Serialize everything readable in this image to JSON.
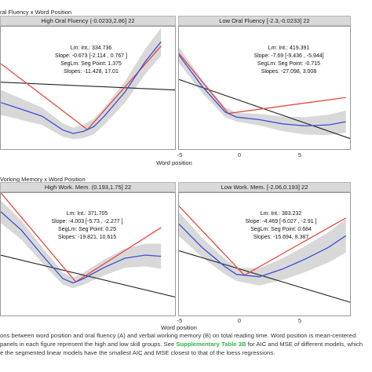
{
  "section_titles": [
    "ral Fluency x Word Position",
    "Vorking Memory x Word Position"
  ],
  "x_axis_label": "Word position",
  "x_ticks": [
    "-5",
    "0",
    "5"
  ],
  "panels": [
    {
      "strip": "High Oral Fluency (-0.0233,2.86] 22",
      "stats": [
        "Lm: Int.: 334.736",
        "Slope: -0.673 [-2.114 , 0.767 ]",
        "SegLm: Seg Point: 1.375",
        "Slopes: -11.428, 17.01"
      ]
    },
    {
      "strip": "Low Oral Fluency [-2.3,-0.0233] 22",
      "stats": [
        "Lm: Int.: 419.391",
        "Slope: -7.69 [-9.436 , -5.944]",
        "SegLm: Seg Point: -0.715",
        "Slopes: -27.098, 3.008"
      ]
    },
    {
      "strip": "High Work. Mem. (0.193,1.75] 22",
      "stats": [
        "Lm: Int.: 371.705",
        "Slope: -4.003 [-5.73 , -2.277 ]",
        "SegLm: Seg Point: 0.25",
        "Slopes: -19.821, 10.615"
      ]
    },
    {
      "strip": "Low Work. Mem. [-2.06,0.193] 22",
      "stats": [
        "Lm: Int.: 383.232",
        "Slope: -4.469 [-6.027 , -2.91 ]",
        "SegLm: Seg Point: 0.684",
        "Slopes: -15.694, 8.387"
      ]
    }
  ],
  "caption": {
    "line1": "ons between word position and oral fluency (A) and verbal working memory (B) on total reading time. Word position is mean-centered.",
    "line2_pre": "panels in each figure represent the high and low skill groups. See ",
    "line2_link": "Supplementary Table 3B",
    "line2_post": " for AIC and MSE of different models, which",
    "line3": "e the segmented linear models have the smallest AIC and MSE closest to that of the loess regressions."
  },
  "colors": {
    "linear": "#222222",
    "segmented": "#e8473f",
    "loess": "#3b4fd8",
    "band": "#c8c8c8"
  },
  "chart_data": [
    {
      "type": "line",
      "title": "High Oral Fluency (-0.0233,2.86] 22",
      "xlabel": "",
      "xlim": [
        -7,
        10
      ],
      "series": [
        {
          "kind": "linear",
          "intercept": 334.736,
          "slope": -0.673
        },
        {
          "kind": "segmented",
          "breakpoint": 1.375,
          "slopes": [
            -11.428,
            17.01
          ]
        },
        {
          "kind": "loess",
          "x": [
            -7,
            -5,
            -3,
            -1,
            0,
            1,
            2,
            3,
            5,
            7,
            8.5
          ],
          "y": [
            310,
            300,
            290,
            270,
            265,
            268,
            275,
            290,
            325,
            370,
            398
          ]
        }
      ]
    },
    {
      "type": "line",
      "title": "Low Oral Fluency [-2.3,-0.0233] 22",
      "xlabel": "Word position",
      "xlim": [
        -5,
        10
      ],
      "series": [
        {
          "kind": "linear",
          "intercept": 419.391,
          "slope": -7.69
        },
        {
          "kind": "segmented",
          "breakpoint": -0.715,
          "slopes": [
            -27.098,
            3.008
          ]
        },
        {
          "kind": "loess",
          "x": [
            -5,
            -3,
            -1,
            0,
            2,
            4,
            6,
            8,
            9.5
          ],
          "y": [
            505,
            445,
            395,
            385,
            380,
            372,
            368,
            370,
            376
          ]
        }
      ]
    },
    {
      "type": "line",
      "title": "High Work. Mem. (0.193,1.75] 22",
      "xlabel": "",
      "xlim": [
        -7,
        10
      ],
      "series": [
        {
          "kind": "linear",
          "intercept": 371.705,
          "slope": -4.003
        },
        {
          "kind": "segmented",
          "breakpoint": 0.25,
          "slopes": [
            -19.821,
            10.615
          ]
        },
        {
          "kind": "loess",
          "x": [
            -7,
            -5,
            -3,
            -1,
            0,
            1,
            3,
            5,
            7,
            8.5
          ],
          "y": [
            470,
            440,
            400,
            362,
            355,
            362,
            380,
            395,
            400,
            398
          ]
        }
      ]
    },
    {
      "type": "line",
      "title": "Low Work. Mem. [-2.06,0.193] 22",
      "xlabel": "Word position",
      "xlim": [
        -5,
        10
      ],
      "series": [
        {
          "kind": "linear",
          "intercept": 383.232,
          "slope": -4.469
        },
        {
          "kind": "segmented",
          "breakpoint": 0.684,
          "slopes": [
            -15.694,
            8.387
          ]
        },
        {
          "kind": "loess",
          "x": [
            -5,
            -3,
            -1,
            0,
            2,
            4,
            6,
            8,
            9.5
          ],
          "y": [
            440,
            410,
            385,
            375,
            372,
            382,
            395,
            410,
            425
          ]
        }
      ]
    }
  ]
}
